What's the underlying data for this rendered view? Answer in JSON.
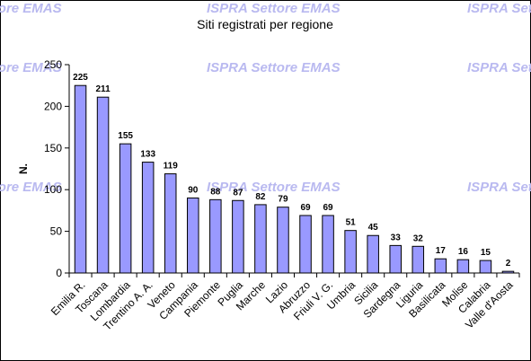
{
  "chart_data": {
    "type": "bar",
    "title": "Siti registrati per regione",
    "ylabel": "N.",
    "xlabel": "",
    "ylim": [
      0,
      250
    ],
    "yticks": [
      0,
      50,
      100,
      150,
      200,
      250
    ],
    "grid": false,
    "legend": "none",
    "bar_color": "#9999ff",
    "bar_edge_color": "#000000",
    "watermark": "ISPRA Settore EMAS",
    "watermark_color": "#b9b9f0",
    "categories": [
      "Emilia R.",
      "Toscana",
      "Lombardia",
      "Trentino A. A.",
      "Veneto",
      "Campania",
      "Piemonte",
      "Puglia",
      "Marche",
      "Lazio",
      "Abruzzo",
      "Friuli V. G.",
      "Umbria",
      "Sicilia",
      "Sardegna",
      "Liguria",
      "Basilicata",
      "Molise",
      "Calabria",
      "Valle d'Aosta"
    ],
    "values": [
      225,
      211,
      155,
      133,
      119,
      90,
      88,
      87,
      82,
      79,
      69,
      69,
      51,
      45,
      33,
      32,
      17,
      16,
      15,
      2
    ]
  }
}
